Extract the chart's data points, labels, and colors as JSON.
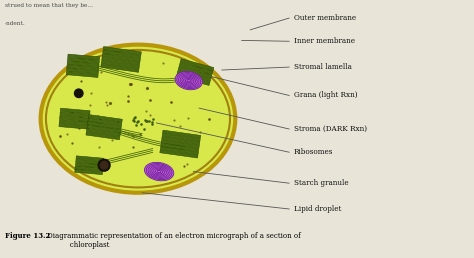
{
  "bg_color": "#cdc9b8",
  "paper_color": "#e8e4d8",
  "chloroplast_fill": "#d8e84a",
  "outer_mem_color": "#b8960a",
  "inner_mem_color": "#a08010",
  "grana_fill": "#4a6a10",
  "grana_edge": "#2a4a05",
  "lamella_color": "#4a6a10",
  "starch_ring": "#8030a0",
  "starch_fill": "#b040c0",
  "dark_dot_color": "#1a1208",
  "small_dot_color": "#5a4a10",
  "label_color": "#111111",
  "line_color": "#555555",
  "caption_bold": "Figure 13.2",
  "caption_rest": " Diagrammatic representation of an electron micrograph of a section of\n           chloroplast",
  "labels": {
    "outer_membrane": "Outer membrane",
    "inner_membrane": "Inner membrane",
    "stromal_lamella": "Stromal lamella",
    "grana": "Grana (light Rxn)",
    "stroma": "Stroma (DARK Rxn)",
    "ribosomes": "Ribosomes",
    "starch_granule": "Starch granule",
    "lipid_droplet": "Lipid droplet"
  },
  "top_text": [
    "strued to mean that they be...",
    "-ndent."
  ]
}
